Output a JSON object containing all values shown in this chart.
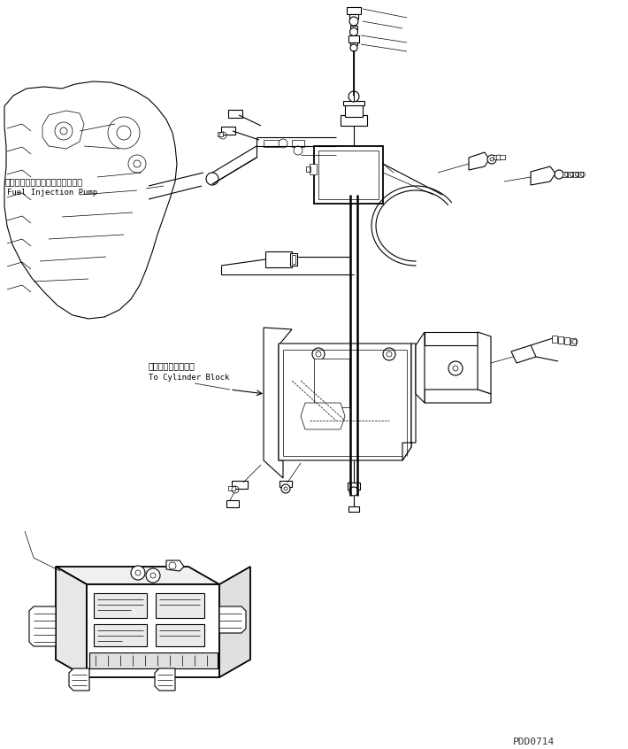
{
  "background_color": "#ffffff",
  "line_color": "#000000",
  "lw": 0.8,
  "tlw": 0.5,
  "label_jp1": "フゥエルインジェクションポンプ",
  "label_en1": "Fuel Injection Pump",
  "label_jp2": "シリンダブロックヘ",
  "label_en2": "To Cylinder Block",
  "watermark": "PDD0714",
  "figsize": [
    7.1,
    8.46
  ],
  "dpi": 100
}
